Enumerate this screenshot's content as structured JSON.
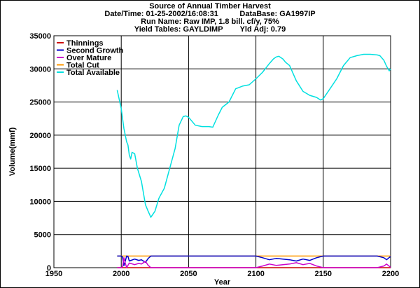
{
  "chart_data": {
    "type": "line",
    "title_lines": [
      "Source of Annual Timber Harvest",
      "Date/Time: 01-25-2002/16:08:31          DataBase: GA1997IP",
      "Run Name: Raw IMP, 1.8 bill. cf/y, 75%",
      "Yield Tables: GAYLDIMP        Yld Adj: 0.79"
    ],
    "xlabel": "Year",
    "ylabel": "Volume(mmf)",
    "xlim": [
      1950,
      2200
    ],
    "ylim": [
      0,
      35000
    ],
    "x_ticks": [
      1950,
      2000,
      2050,
      2100,
      2150,
      2200
    ],
    "y_ticks": [
      0,
      5000,
      10000,
      15000,
      20000,
      25000,
      30000,
      35000
    ],
    "grid": true,
    "legend_position": "top-left",
    "series": [
      {
        "name": "Thinnings",
        "color": "#cc0000",
        "x": [
          1997,
          2200
        ],
        "y": [
          0,
          0
        ]
      },
      {
        "name": "Second Growth",
        "color": "#0000cc",
        "x": [
          1997,
          2000,
          2001,
          2002,
          2003,
          2004,
          2005,
          2006,
          2010,
          2013,
          2015,
          2018,
          2020,
          2022,
          2030,
          2050,
          2100,
          2105,
          2110,
          2115,
          2120,
          2125,
          2130,
          2135,
          2140,
          2145,
          2150,
          2190,
          2195,
          2197,
          2200
        ],
        "y": [
          1750,
          1750,
          1600,
          300,
          1000,
          1750,
          1700,
          1000,
          1300,
          1100,
          1200,
          800,
          1400,
          1750,
          1750,
          1750,
          1750,
          1500,
          1200,
          1400,
          1300,
          1200,
          1000,
          1300,
          1100,
          1500,
          1750,
          1750,
          1500,
          1200,
          1700
        ]
      },
      {
        "name": "Over Mature",
        "color": "#cc00cc",
        "x": [
          1997,
          2000,
          2001,
          2002,
          2003,
          2004,
          2006,
          2010,
          2013,
          2015,
          2018,
          2020,
          2022,
          2100,
          2105,
          2110,
          2115,
          2120,
          2125,
          2130,
          2135,
          2140,
          2145,
          2150,
          2190,
          2195,
          2197,
          2200
        ],
        "y": [
          0,
          0,
          150,
          1500,
          700,
          0,
          700,
          450,
          650,
          550,
          950,
          350,
          0,
          0,
          250,
          550,
          350,
          450,
          550,
          750,
          450,
          650,
          250,
          0,
          0,
          250,
          550,
          50
        ]
      },
      {
        "name": "Total Cut",
        "color": "#ff9900",
        "x": [
          1997,
          2200
        ],
        "y": [
          1750,
          1750
        ]
      },
      {
        "name": "Total Available",
        "color": "#00e0e0",
        "x": [
          1997,
          2000,
          2002,
          2004,
          2005,
          2006,
          2007,
          2008,
          2010,
          2012,
          2015,
          2018,
          2020,
          2022,
          2025,
          2028,
          2032,
          2036,
          2040,
          2043,
          2046,
          2048,
          2050,
          2055,
          2060,
          2065,
          2068,
          2072,
          2075,
          2080,
          2085,
          2090,
          2095,
          2100,
          2105,
          2110,
          2113,
          2115,
          2117,
          2120,
          2122,
          2125,
          2130,
          2135,
          2140,
          2145,
          2148,
          2150,
          2155,
          2160,
          2165,
          2170,
          2175,
          2180,
          2185,
          2190,
          2192,
          2195,
          2197,
          2199,
          2200
        ],
        "y": [
          26800,
          24000,
          21000,
          19000,
          18500,
          17000,
          16400,
          17400,
          17200,
          15000,
          13000,
          9500,
          8500,
          7600,
          8500,
          10500,
          12000,
          15000,
          18000,
          21500,
          22800,
          22900,
          22700,
          21500,
          21300,
          21300,
          21200,
          23000,
          24200,
          25000,
          27000,
          27400,
          27600,
          28500,
          29500,
          30800,
          31500,
          31800,
          31900,
          31500,
          31000,
          30500,
          28200,
          26600,
          26000,
          25700,
          25300,
          25500,
          27000,
          28500,
          30500,
          31700,
          32000,
          32200,
          32200,
          32100,
          32000,
          31300,
          30400,
          29700,
          30000
        ]
      }
    ]
  }
}
